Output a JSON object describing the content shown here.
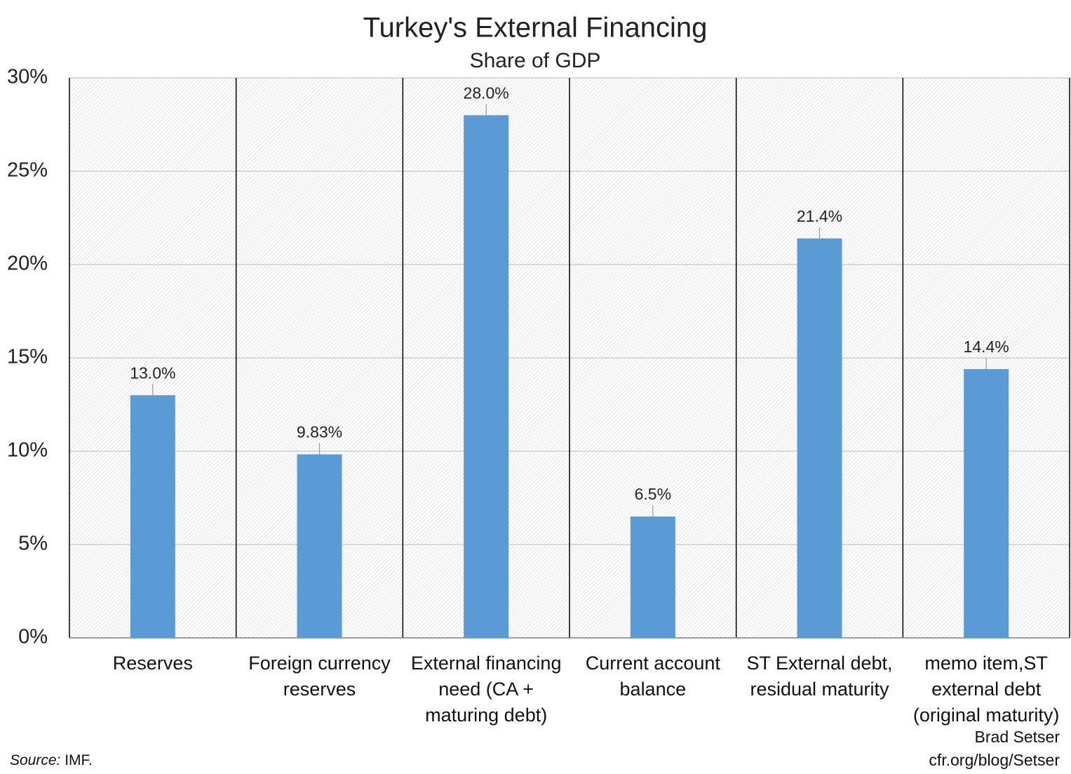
{
  "chart_data": {
    "type": "bar",
    "title": "Turkey's External Financing",
    "subtitle": "Share of GDP",
    "categories": [
      "Reserves",
      "Foreign currency\nreserves",
      "External financing\nneed (CA +\nmaturing debt)",
      "Current account\nbalance",
      "ST External debt,\nresidual maturity",
      "memo item,ST\nexternal debt\n(original maturity)"
    ],
    "values": [
      13.0,
      9.83,
      28.0,
      6.5,
      21.4,
      14.4
    ],
    "value_labels": [
      "13.0%",
      "9.83%",
      "28.0%",
      "6.5%",
      "21.4%",
      "14.4%"
    ],
    "color": "#5b9bd5",
    "ylim": [
      0,
      30
    ],
    "yticks": [
      {
        "value": 0,
        "label": "0%"
      },
      {
        "value": 5,
        "label": "5%"
      },
      {
        "value": 10,
        "label": "10%"
      },
      {
        "value": 15,
        "label": "15%"
      },
      {
        "value": 20,
        "label": "20%"
      },
      {
        "value": 25,
        "label": "25%"
      },
      {
        "value": 30,
        "label": "30%"
      }
    ],
    "grid": true,
    "source_label": "Source:",
    "source": "IMF.",
    "credit": [
      "Brad Setser",
      "cfr.org/blog/Setser"
    ]
  }
}
